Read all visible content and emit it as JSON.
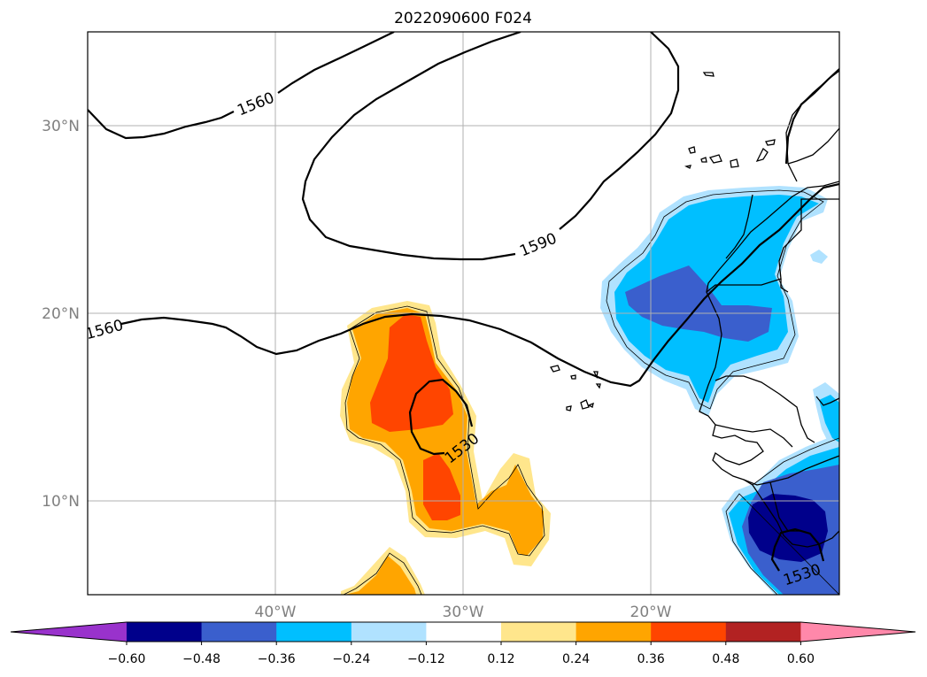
{
  "title": "2022090600 F024",
  "latitude_labels": [
    "30°N",
    "20°N",
    "10°N"
  ],
  "longitude_labels": [
    "40°W",
    "30°W",
    "20°W"
  ],
  "contour_labels": [
    "1560",
    "1590",
    "1560",
    "1530",
    "1530"
  ],
  "colorbar": {
    "ticks": [
      "−0.60",
      "−0.48",
      "−0.36",
      "−0.24",
      "−0.12",
      "0.12",
      "0.24",
      "0.36",
      "0.48",
      "0.60"
    ],
    "colors": [
      "#9932cc",
      "#00008b",
      "#3a5fcd",
      "#00bfff",
      "#b0e2ff",
      "#ffffff",
      "#ffe68c",
      "#ffa500",
      "#ff4500",
      "#b22222",
      "#ff88aa"
    ]
  },
  "colors": {
    "pos_low": "#ffe68c",
    "pos_mid": "#ffa500",
    "pos_high": "#ff4500",
    "neg_low": "#b0e2ff",
    "neg_mid": "#00bfff",
    "neg_high": "#3a5fcd",
    "neg_max": "#00008b"
  }
}
